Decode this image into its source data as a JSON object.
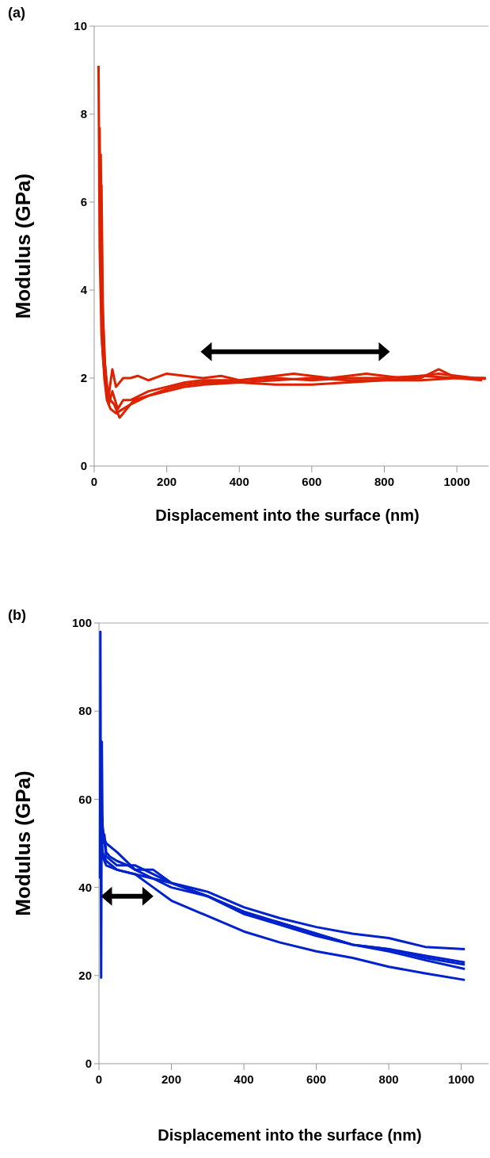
{
  "chart_data": [
    {
      "type": "line",
      "title": "(a)",
      "xlabel": "Displacement into the surface (nm)",
      "ylabel": "Modulus (GPa)",
      "xlim": [
        0,
        1087
      ],
      "xticks": [
        0,
        200,
        400,
        600,
        800,
        1000
      ],
      "ylim": [
        0,
        10
      ],
      "yticks": [
        0,
        2,
        4,
        6,
        8,
        10
      ],
      "grid": false,
      "marker": "none",
      "line_style": "solid",
      "series": [
        {
          "color": "#dd2200",
          "x": [
            12,
            15,
            20,
            25,
            30,
            40,
            50,
            60,
            80,
            100,
            120,
            150,
            200,
            250,
            300,
            350,
            400,
            450,
            500,
            550,
            600,
            650,
            700,
            750,
            800,
            850,
            900,
            950,
            1000,
            1050,
            1080
          ],
          "values": [
            9.1,
            5,
            3,
            2.4,
            2.0,
            1.6,
            2.2,
            1.8,
            2.0,
            2.0,
            2.05,
            1.95,
            2.1,
            2.05,
            2.0,
            2.05,
            1.95,
            2.0,
            2.05,
            2.1,
            2.05,
            2.0,
            2.05,
            2.1,
            2.05,
            2.0,
            2.05,
            2.1,
            2.05,
            2.0,
            1.98
          ]
        },
        {
          "color": "#dd2200",
          "x": [
            15,
            18,
            22,
            28,
            35,
            45,
            60,
            80,
            100,
            150,
            200,
            250,
            300,
            400,
            500,
            600,
            700,
            800,
            900,
            1000,
            1080
          ],
          "values": [
            7.7,
            4.5,
            2.8,
            2.0,
            1.5,
            1.3,
            1.2,
            1.3,
            1.4,
            1.6,
            1.7,
            1.8,
            1.85,
            1.9,
            1.85,
            1.85,
            1.9,
            1.95,
            1.95,
            2.0,
            2.0
          ]
        },
        {
          "color": "#dd2200",
          "x": [
            18,
            22,
            27,
            33,
            40,
            50,
            65,
            80,
            100,
            150,
            200,
            250,
            300,
            400,
            500,
            600,
            700,
            800,
            900,
            1000,
            1075
          ],
          "values": [
            7.1,
            4.0,
            2.6,
            1.9,
            1.4,
            1.7,
            1.3,
            1.5,
            1.5,
            1.7,
            1.8,
            1.9,
            1.95,
            1.95,
            2.0,
            1.95,
            2.0,
            2.0,
            2.05,
            2.0,
            2.0
          ]
        },
        {
          "color": "#dd2200",
          "x": [
            20,
            24,
            30,
            36,
            45,
            55,
            70,
            90,
            110,
            150,
            200,
            250,
            300,
            400,
            500,
            600,
            700,
            800,
            900,
            950,
            1000,
            1070
          ],
          "values": [
            6.4,
            3.5,
            2.3,
            1.8,
            1.5,
            1.4,
            1.1,
            1.3,
            1.5,
            1.6,
            1.75,
            1.85,
            1.9,
            1.9,
            1.95,
            2.0,
            1.95,
            1.95,
            2.0,
            2.2,
            2.0,
            1.95
          ]
        }
      ]
    },
    {
      "type": "line",
      "title": "(b)",
      "xlabel": "Displacement into the surface (nm)",
      "ylabel": "Modulus (GPa)",
      "xlim": [
        0,
        1075
      ],
      "xticks": [
        0,
        200,
        400,
        600,
        800,
        1000
      ],
      "ylim": [
        0,
        100
      ],
      "yticks": [
        0,
        20,
        40,
        60,
        80,
        100
      ],
      "grid": false,
      "marker": "none",
      "line_style": "solid",
      "series": [
        {
          "color": "#0022cc",
          "x": [
            3,
            4,
            6,
            8,
            10,
            15,
            20,
            30,
            50,
            80,
            100,
            150,
            200,
            300,
            400,
            500,
            600,
            700,
            800,
            900,
            1010
          ],
          "values": [
            42,
            98,
            19.5,
            73,
            50,
            52,
            48,
            47,
            46,
            45,
            44,
            42,
            41,
            38,
            34.5,
            32,
            29.5,
            27,
            26,
            24,
            22.5
          ]
        },
        {
          "color": "#0022cc",
          "x": [
            5,
            10,
            20,
            50,
            100,
            150,
            200,
            300,
            400,
            500,
            600,
            700,
            800,
            900,
            1010
          ],
          "values": [
            55,
            48,
            46,
            44,
            43,
            40,
            37,
            33.5,
            30,
            27.5,
            25.5,
            24,
            22,
            20.5,
            19
          ]
        },
        {
          "color": "#0022cc",
          "x": [
            5,
            10,
            20,
            50,
            100,
            150,
            200,
            300,
            400,
            500,
            600,
            700,
            800,
            900,
            1010
          ],
          "values": [
            62,
            52,
            50,
            48,
            44,
            44,
            41,
            39,
            35.5,
            33,
            31,
            29.5,
            28.5,
            26.5,
            26
          ]
        },
        {
          "color": "#0022cc",
          "x": [
            5,
            10,
            20,
            50,
            100,
            150,
            200,
            300,
            400,
            500,
            600,
            700,
            800,
            900,
            1010
          ],
          "values": [
            60,
            54,
            47,
            45,
            45,
            43,
            41,
            38,
            34,
            32,
            29.5,
            27,
            26,
            24.5,
            23
          ]
        },
        {
          "color": "#0022cc",
          "x": [
            5,
            10,
            20,
            50,
            100,
            150,
            200,
            300,
            400,
            500,
            600,
            700,
            800,
            900,
            1010
          ],
          "values": [
            50,
            47,
            45,
            44,
            43,
            42,
            40,
            38,
            34,
            31.5,
            29,
            27,
            25.5,
            23.5,
            21.5
          ]
        }
      ]
    }
  ]
}
